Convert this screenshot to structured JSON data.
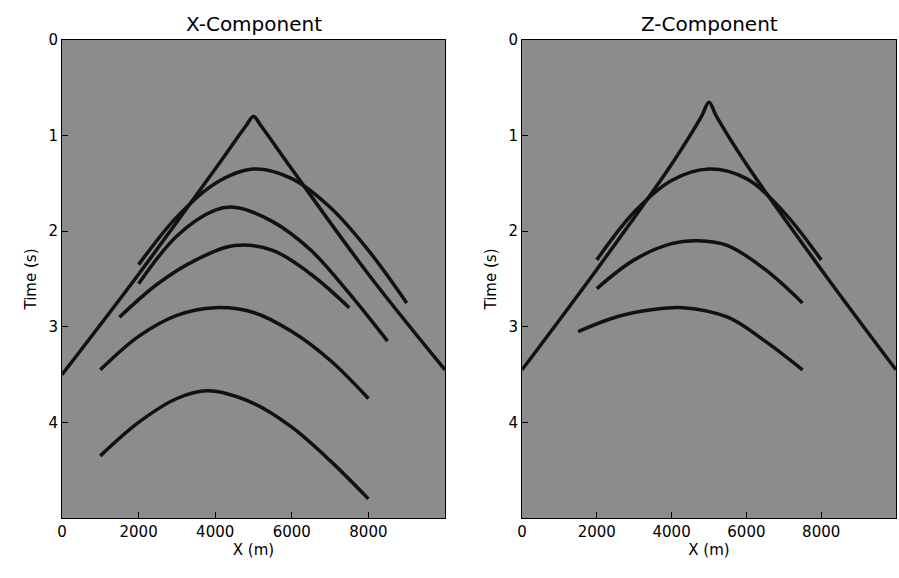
{
  "chart_data": [
    {
      "type": "line",
      "title": "X-Component",
      "x_label": "X (m)",
      "y_label": "Time (s)",
      "xlim": [
        0,
        10000
      ],
      "ylim": [
        5,
        0
      ],
      "xticks": [
        0,
        2000,
        4000,
        6000,
        8000
      ],
      "yticks": [
        0,
        1,
        2,
        3,
        4
      ],
      "series": [
        {
          "color": "#111111",
          "x": [
            0,
            2000,
            4000,
            4800,
            5000,
            5200,
            6000,
            8000,
            10000
          ],
          "values": [
            3.5,
            2.45,
            1.35,
            0.9,
            0.8,
            0.9,
            1.35,
            2.45,
            3.45
          ]
        },
        {
          "color": "#111111",
          "x": [
            2000,
            3000,
            4000,
            5000,
            6000,
            7000,
            8000,
            9000
          ],
          "values": [
            2.35,
            1.85,
            1.5,
            1.35,
            1.45,
            1.75,
            2.2,
            2.75
          ]
        },
        {
          "color": "#111111",
          "x": [
            2000,
            3000,
            4000,
            4500,
            5500,
            6500,
            7500,
            8500
          ],
          "values": [
            2.55,
            2.05,
            1.78,
            1.75,
            1.9,
            2.2,
            2.65,
            3.15
          ]
        },
        {
          "color": "#111111",
          "x": [
            1500,
            2500,
            3500,
            4500,
            5500,
            6500,
            7500
          ],
          "values": [
            2.9,
            2.55,
            2.3,
            2.15,
            2.2,
            2.45,
            2.8
          ]
        },
        {
          "color": "#111111",
          "x": [
            1000,
            2000,
            3000,
            4000,
            5000,
            6000,
            7000,
            8000
          ],
          "values": [
            3.45,
            3.1,
            2.88,
            2.8,
            2.85,
            3.05,
            3.35,
            3.75
          ]
        },
        {
          "color": "#111111",
          "x": [
            1000,
            2000,
            3000,
            3800,
            5000,
            6000,
            7000,
            8000
          ],
          "values": [
            4.35,
            4.0,
            3.75,
            3.67,
            3.8,
            4.05,
            4.4,
            4.8
          ]
        }
      ]
    },
    {
      "type": "line",
      "title": "Z-Component",
      "x_label": "X (m)",
      "y_label": "Time (s)",
      "xlim": [
        0,
        10000
      ],
      "ylim": [
        5,
        0
      ],
      "xticks": [
        0,
        2000,
        4000,
        6000,
        8000
      ],
      "yticks": [
        0,
        1,
        2,
        3,
        4
      ],
      "series": [
        {
          "color": "#111111",
          "x": [
            0,
            2000,
            4000,
            4800,
            5000,
            5200,
            6000,
            8000,
            10000
          ],
          "values": [
            3.45,
            2.4,
            1.3,
            0.8,
            0.65,
            0.8,
            1.3,
            2.4,
            3.45
          ]
        },
        {
          "color": "#111111",
          "x": [
            2000,
            3000,
            4000,
            5000,
            6000,
            7000,
            8000
          ],
          "values": [
            2.3,
            1.8,
            1.47,
            1.35,
            1.45,
            1.8,
            2.3
          ]
        },
        {
          "color": "#111111",
          "x": [
            2000,
            3000,
            4000,
            4700,
            5500,
            6500,
            7500
          ],
          "values": [
            2.6,
            2.3,
            2.13,
            2.1,
            2.15,
            2.4,
            2.75
          ]
        },
        {
          "color": "#111111",
          "x": [
            1500,
            2500,
            3500,
            4300,
            5500,
            6500,
            7500
          ],
          "values": [
            3.05,
            2.9,
            2.82,
            2.8,
            2.9,
            3.15,
            3.45
          ]
        }
      ]
    }
  ]
}
